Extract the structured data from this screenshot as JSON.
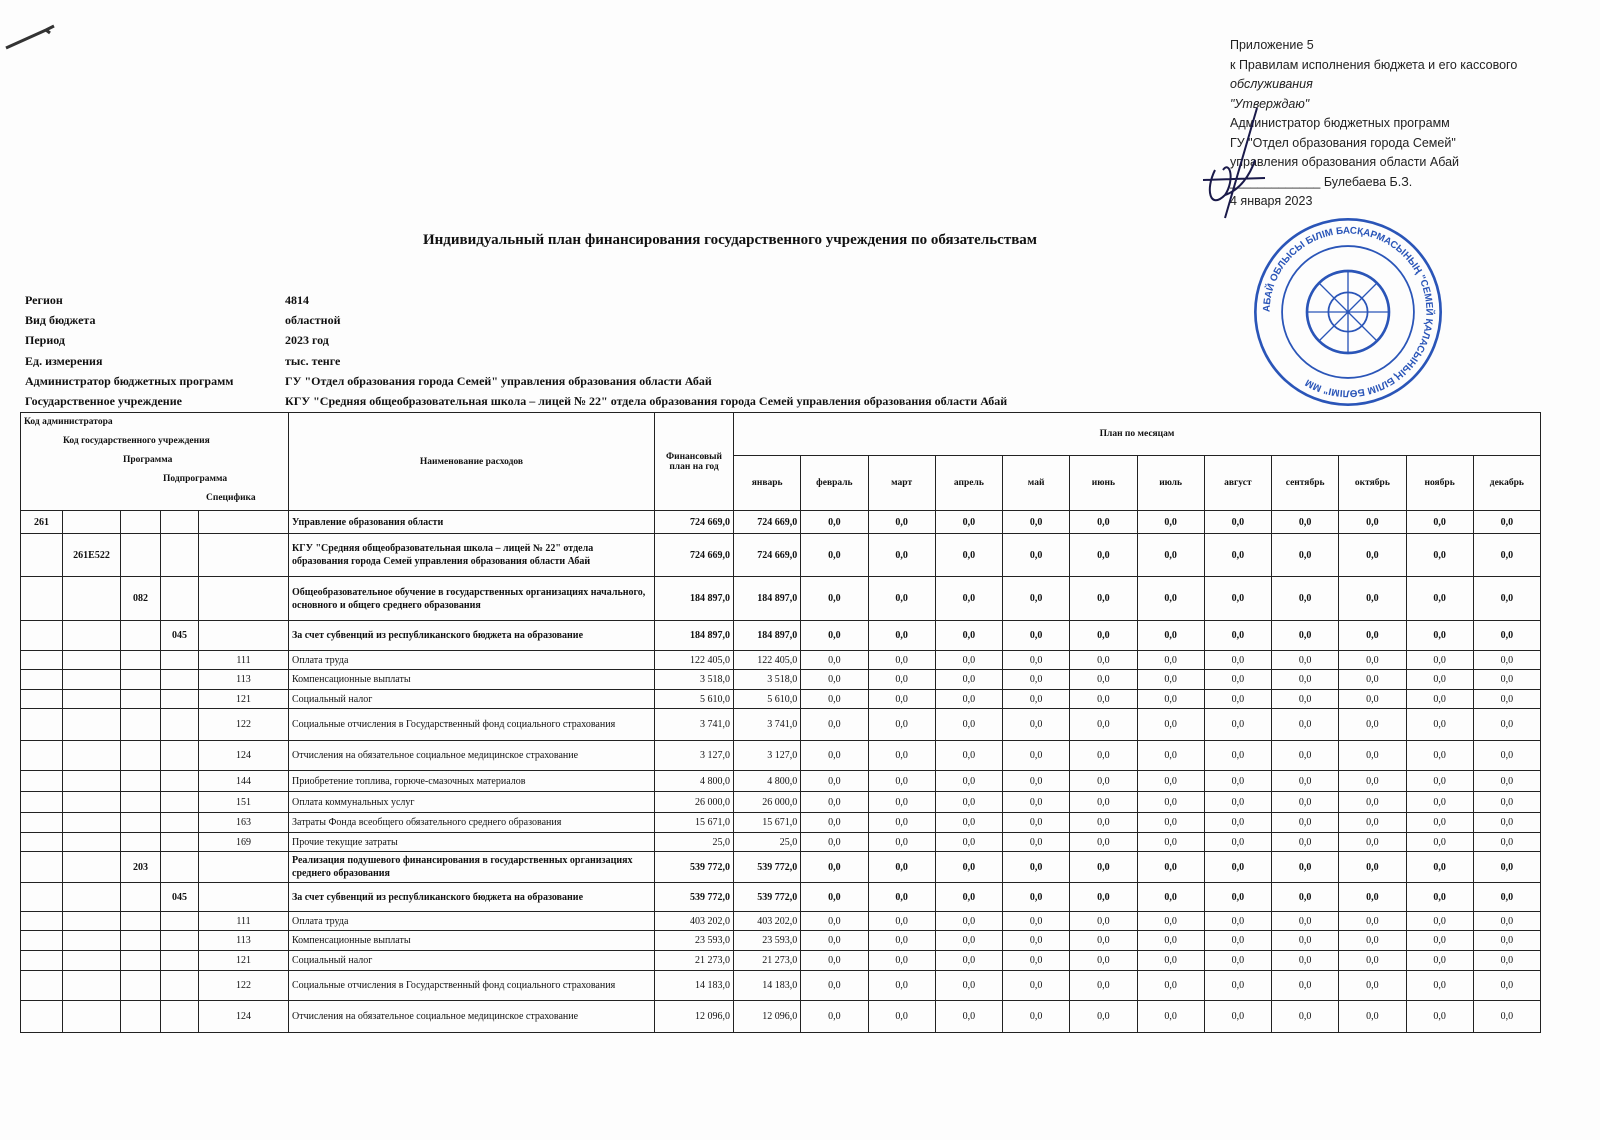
{
  "approval": {
    "lines": [
      "Приложение 5",
      "к Правилам исполнения бюджета и его кассового",
      "обслуживания",
      "\"Утверждаю\"",
      "Администратор бюджетных программ",
      "ГУ \"Отдел образования города Семей\"",
      "управления образования области Абай",
      "_____________ Булебаева Б.З.",
      "4 января 2023"
    ],
    "stamp_text": "АБАЙ ОБЛЫСЫ БІЛІМ БАСҚАРМАСЫНЫҢ \"СЕМЕЙ ҚАЛАСЫНЫҢ БІЛІМ БӨЛІМІ\" ММ",
    "stamp_color": "#2a55b8"
  },
  "title": "Индивидуальный план финансирования государственного учреждения по обязательствам",
  "info": [
    {
      "label": "Регион",
      "value": "4814"
    },
    {
      "label": "Вид бюджета",
      "value": "областной"
    },
    {
      "label": "Период",
      "value": "2023 год"
    },
    {
      "label": "Ед. измерения",
      "value": "тыс. тенге"
    },
    {
      "label": "Администратор бюджетных программ",
      "value": "ГУ \"Отдел образования города Семей\" управления образования области Абай"
    },
    {
      "label": "Государственное учреждение",
      "value": "КГУ \"Средняя общеобразовательная школа – лицей № 22\" отдела образования города Семей управления образования области Абай"
    }
  ],
  "table": {
    "code_headers": [
      "Код администратора",
      "Код государственного учреждения",
      "Программа",
      "Подпрограмма",
      "Специфика"
    ],
    "name_header": "Наименование расходов",
    "total_header": "Финансовый план на год",
    "months_header": "План по месяцам",
    "months": [
      "январь",
      "февраль",
      "март",
      "апрель",
      "май",
      "июнь",
      "июль",
      "август",
      "сентябрь",
      "октябрь",
      "ноябрь",
      "декабрь"
    ],
    "rows": [
      {
        "level": 0,
        "code": "261",
        "name": "Управление образования области",
        "total": "724 669,0",
        "jan": "724 669,0",
        "bold": true
      },
      {
        "level": 1,
        "code": "261E522",
        "name": "КГУ \"Средняя общеобразовательная школа – лицей № 22\" отдела образования города Семей управления образования области Абай",
        "total": "724 669,0",
        "jan": "724 669,0",
        "bold": true
      },
      {
        "level": 2,
        "code": "082",
        "name": "Общеобразовательное обучение в государственных организациях начального, основного и общего среднего образования",
        "total": "184 897,0",
        "jan": "184 897,0",
        "bold": true
      },
      {
        "level": 3,
        "code": "045",
        "name": "За счет субвенций из республиканского бюджета на образование",
        "total": "184 897,0",
        "jan": "184 897,0",
        "bold": true
      },
      {
        "level": 4,
        "code": "111",
        "name": "Оплата труда",
        "total": "122 405,0",
        "jan": "122 405,0"
      },
      {
        "level": 4,
        "code": "113",
        "name": "Компенсационные выплаты",
        "total": "3 518,0",
        "jan": "3 518,0"
      },
      {
        "level": 4,
        "code": "121",
        "name": "Социальный налог",
        "total": "5 610,0",
        "jan": "5 610,0"
      },
      {
        "level": 4,
        "code": "122",
        "name": "Социальные отчисления в Государственный фонд социального страхования",
        "total": "3 741,0",
        "jan": "3 741,0"
      },
      {
        "level": 4,
        "code": "124",
        "name": "Отчисления на обязательное социальное медицинское страхование",
        "total": "3 127,0",
        "jan": "3 127,0"
      },
      {
        "level": 4,
        "code": "144",
        "name": "Приобретение топлива, горюче-смазочных материалов",
        "total": "4 800,0",
        "jan": "4 800,0"
      },
      {
        "level": 4,
        "code": "151",
        "name": "Оплата коммунальных услуг",
        "total": "26 000,0",
        "jan": "26 000,0"
      },
      {
        "level": 4,
        "code": "163",
        "name": "Затраты Фонда всеобщего обязательного среднего образования",
        "total": "15 671,0",
        "jan": "15 671,0"
      },
      {
        "level": 4,
        "code": "169",
        "name": "Прочие текущие затраты",
        "total": "25,0",
        "jan": "25,0"
      },
      {
        "level": 2,
        "code": "203",
        "name": "Реализация подушевого финансирования в государственных организациях среднего образования",
        "total": "539 772,0",
        "jan": "539 772,0",
        "bold": true
      },
      {
        "level": 3,
        "code": "045",
        "name": "За счет субвенций из республиканского бюджета на образование",
        "total": "539 772,0",
        "jan": "539 772,0",
        "bold": true
      },
      {
        "level": 4,
        "code": "111",
        "name": "Оплата труда",
        "total": "403 202,0",
        "jan": "403 202,0"
      },
      {
        "level": 4,
        "code": "113",
        "name": "Компенсационные выплаты",
        "total": "23 593,0",
        "jan": "23 593,0"
      },
      {
        "level": 4,
        "code": "121",
        "name": "Социальный налог",
        "total": "21 273,0",
        "jan": "21 273,0"
      },
      {
        "level": 4,
        "code": "122",
        "name": "Социальные отчисления в Государственный фонд социального страхования",
        "total": "14 183,0",
        "jan": "14 183,0"
      },
      {
        "level": 4,
        "code": "124",
        "name": "Отчисления на обязательное социальное медицинское страхование",
        "total": "12 096,0",
        "jan": "12 096,0"
      }
    ],
    "zero_value": "0,0"
  }
}
